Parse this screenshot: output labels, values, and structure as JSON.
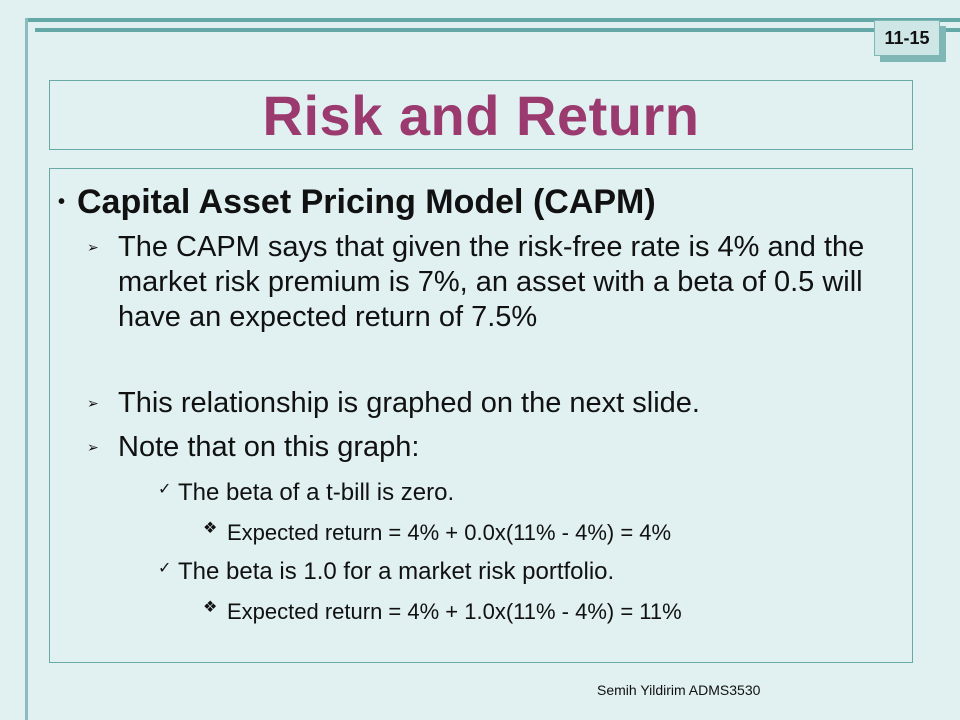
{
  "slide_number": "11-15",
  "title": "Risk and Return",
  "heading": "Capital Asset Pricing Model (CAPM)",
  "points": [
    "The CAPM says that given the risk-free rate is 4% and the market risk premium is 7%, an asset with a beta of 0.5 will have an expected return of 7.5%",
    "This relationship is graphed on the next slide.",
    "Note that on this graph:"
  ],
  "sub_points": [
    "The beta of a t-bill is zero.",
    "Expected return = 4% + 0.0x(11% - 4%) = 4%",
    "The beta is 1.0 for a market risk portfolio.",
    "Expected return = 4% + 1.0x(11% - 4%) = 11%"
  ],
  "footer": "Semih Yildirim   ADMS3530"
}
